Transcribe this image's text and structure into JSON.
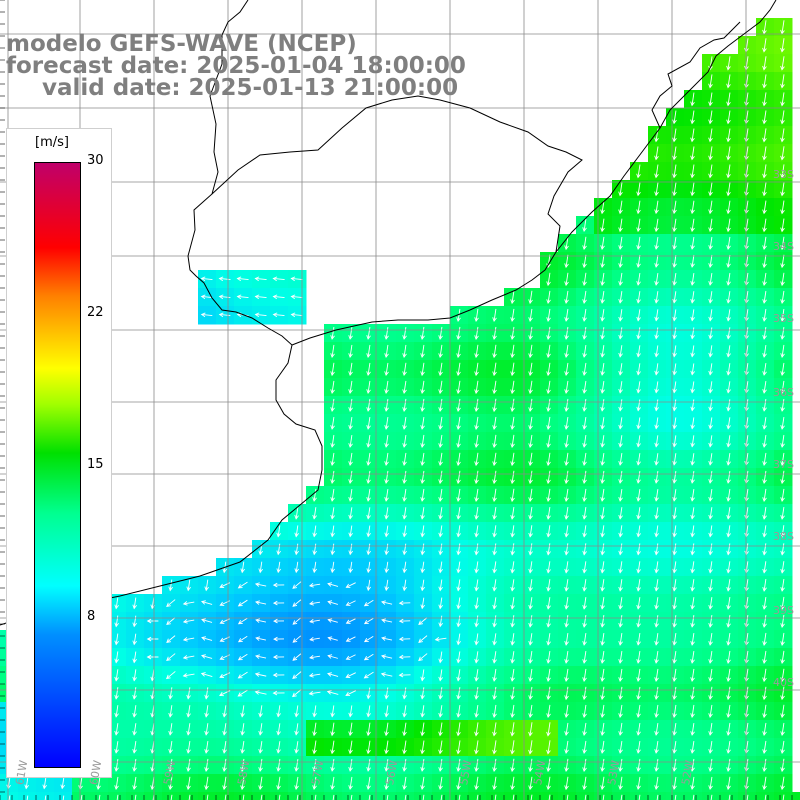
{
  "title": {
    "line1": "modelo GEFS-WAVE (NCEP)",
    "line2": "forecast date: 2025-01-04 18:00:00",
    "line3": "valid date: 2025-01-13 21:00:00"
  },
  "colorbar": {
    "unit": "[m/s]",
    "ticks": [
      "30",
      "22",
      "15",
      "8"
    ],
    "tick_values": [
      30,
      22,
      15,
      8
    ],
    "min": 0,
    "max": 30
  },
  "lat_labels": [
    "33S",
    "34S",
    "35S",
    "36S",
    "37S",
    "38S",
    "39S",
    "40S"
  ],
  "lon_labels": [
    "61W",
    "60W",
    "59W",
    "58W",
    "57W",
    "56W",
    "55W",
    "54W",
    "53W",
    "52W"
  ],
  "colors": {
    "land": "#ffffff",
    "coastline": "#000000",
    "grid": "#9a9a9a",
    "arrows": "#ffffff",
    "title": "#7f7f7f"
  }
}
